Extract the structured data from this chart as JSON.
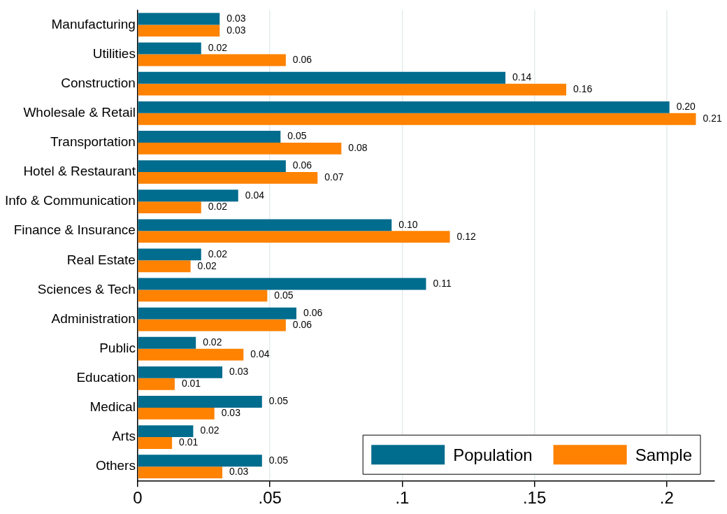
{
  "chart_data": {
    "type": "bar",
    "orientation": "horizontal",
    "categories": [
      "Manufacturing",
      "Utilities",
      "Construction",
      "Wholesale & Retail",
      "Transportation",
      "Hotel & Restaurant",
      "Info & Communication",
      "Finance & Insurance",
      "Real Estate",
      "Sciences & Tech",
      "Administration",
      "Public",
      "Education",
      "Medical",
      "Arts",
      "Others"
    ],
    "series": [
      {
        "name": "Population",
        "color": "#006c8e",
        "values": [
          0.031,
          0.024,
          0.139,
          0.201,
          0.054,
          0.056,
          0.038,
          0.096,
          0.024,
          0.109,
          0.06,
          0.022,
          0.032,
          0.047,
          0.021,
          0.047
        ],
        "value_labels": [
          "0.03",
          "0.02",
          "0.14",
          "0.20",
          "0.05",
          "0.06",
          "0.04",
          "0.10",
          "0.02",
          "0.11",
          "0.06",
          "0.02",
          "0.03",
          "0.05",
          "0.02",
          "0.05"
        ]
      },
      {
        "name": "Sample",
        "color": "#ff8200",
        "values": [
          0.031,
          0.056,
          0.162,
          0.211,
          0.077,
          0.068,
          0.024,
          0.118,
          0.02,
          0.049,
          0.056,
          0.04,
          0.014,
          0.029,
          0.013,
          0.032
        ],
        "value_labels": [
          "0.03",
          "0.06",
          "0.16",
          "0.21",
          "0.08",
          "0.07",
          "0.02",
          "0.12",
          "0.02",
          "0.05",
          "0.06",
          "0.04",
          "0.01",
          "0.03",
          "0.01",
          "0.03"
        ]
      }
    ],
    "xlim": [
      0,
      0.218
    ],
    "xticks": [
      {
        "value": 0,
        "label": "0"
      },
      {
        "value": 0.05,
        "label": ".05"
      },
      {
        "value": 0.1,
        "label": ".1"
      },
      {
        "value": 0.15,
        "label": ".15"
      },
      {
        "value": 0.2,
        "label": ".2"
      }
    ],
    "grid": "x",
    "legend": "bottom right"
  }
}
